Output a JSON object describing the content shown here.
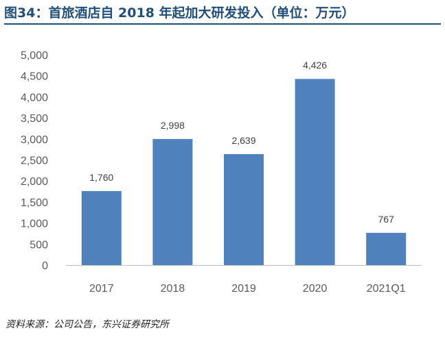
{
  "title": "图34：首旅酒店自 2018 年起加大研发投入（单位：万元）",
  "source": "资料来源：公司公告，东兴证券研究所",
  "chart_data": {
    "type": "bar",
    "categories": [
      "2017",
      "2018",
      "2019",
      "2020",
      "2021Q1"
    ],
    "values": [
      1760,
      2998,
      2639,
      4426,
      767
    ],
    "data_labels": [
      "1,760",
      "2,998",
      "2,639",
      "4,426",
      "767"
    ],
    "ylim": [
      0,
      5000
    ],
    "yticks": [
      "0",
      "500",
      "1,000",
      "1,500",
      "2,000",
      "2,500",
      "3,000",
      "3,500",
      "4,000",
      "4,500",
      "5,000"
    ],
    "ytick_values": [
      0,
      500,
      1000,
      1500,
      2000,
      2500,
      3000,
      3500,
      4000,
      4500,
      5000
    ],
    "bar_color": "#4f81bd",
    "grid": false,
    "legend": "none"
  }
}
